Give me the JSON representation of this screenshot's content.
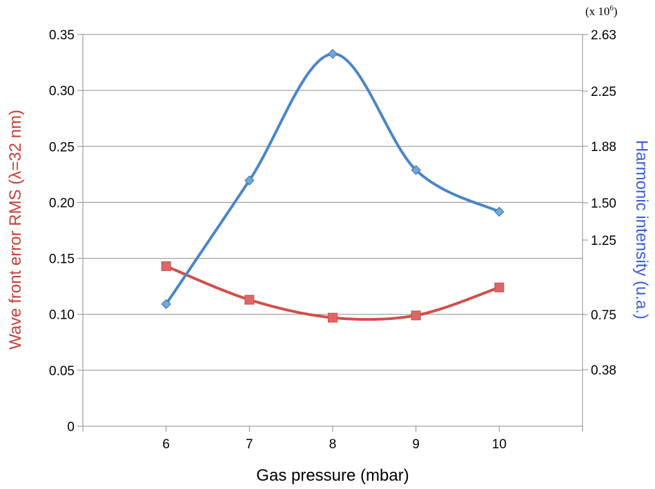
{
  "chart_data": {
    "type": "line",
    "title": "",
    "xlabel": "Gas pressure (mbar)",
    "x": [
      6,
      7,
      8,
      9,
      10
    ],
    "xlim": [
      5,
      11
    ],
    "left_axis": {
      "label": "Wave front error RMS (λ=32 nm)",
      "color": "#c8403a",
      "ylim": [
        0,
        0.35
      ],
      "ticks": [
        "0",
        "0.05",
        "0.10",
        "0.15",
        "0.20",
        "0.25",
        "0.30",
        "0.35"
      ]
    },
    "right_axis": {
      "label": "Harmonic intensity (u.a.)",
      "color": "#3a5fd8",
      "multiplier_base": "(x 10",
      "multiplier_exp": "6",
      "multiplier_close": ")",
      "ylim": [
        0,
        2.63
      ],
      "tick_values": [
        0.38,
        0.75,
        1.25,
        1.5,
        1.88,
        2.25,
        2.63
      ],
      "ticks": [
        "0.38",
        "0.75",
        "1.25",
        "1.50",
        "1.88",
        "2.25",
        "2.63"
      ]
    },
    "series": [
      {
        "axis": "left",
        "values": [
          0.143,
          0.113,
          0.097,
          0.099,
          0.124
        ],
        "line_color": "#d0504a",
        "marker": "square",
        "marker_color": "#e06666"
      },
      {
        "axis": "right",
        "values": [
          0.82,
          1.65,
          2.5,
          1.72,
          1.44
        ],
        "line_color": "#4a86c8",
        "marker": "diamond",
        "marker_color": "#6fa8dc"
      }
    ],
    "grid": true
  }
}
